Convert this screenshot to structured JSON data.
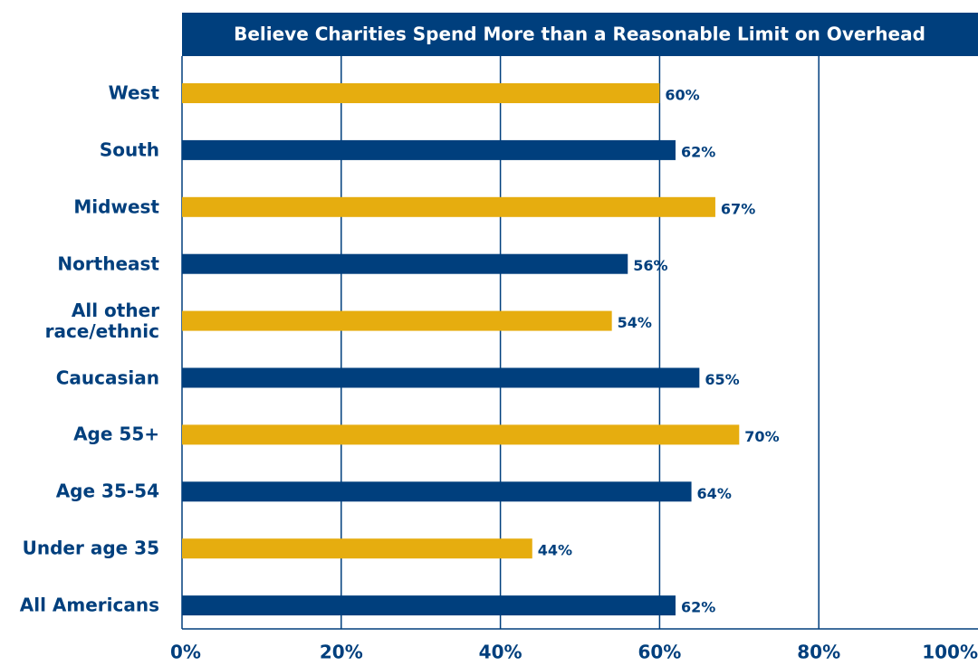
{
  "chart_data": {
    "type": "bar",
    "orientation": "horizontal",
    "title": "Believe Charities Spend More than a Reasonable Limit on Overhead",
    "categories": [
      "West",
      "South",
      "Midwest",
      "Northeast",
      "All other race/ethnic",
      "Caucasian",
      "Age 55+",
      "Age 35-54",
      "Under age 35",
      "All Americans"
    ],
    "values": [
      60,
      62,
      67,
      56,
      54,
      65,
      70,
      64,
      44,
      62
    ],
    "value_labels": [
      "60%",
      "62%",
      "67%",
      "56%",
      "54%",
      "65%",
      "70%",
      "64%",
      "44%",
      "62%"
    ],
    "colors": [
      "#e6ad0f",
      "#003f7d",
      "#e6ad0f",
      "#003f7d",
      "#e6ad0f",
      "#003f7d",
      "#e6ad0f",
      "#003f7d",
      "#e6ad0f",
      "#003f7d"
    ],
    "xlim": [
      0,
      100
    ],
    "xticks": [
      {
        "value": 0,
        "label": "0%"
      },
      {
        "value": 20,
        "label": "20%"
      },
      {
        "value": 40,
        "label": "40%"
      },
      {
        "value": 60,
        "label": "60%"
      },
      {
        "value": 80,
        "label": "80%"
      },
      {
        "value": 100,
        "label": "100%"
      }
    ],
    "grid": true
  }
}
